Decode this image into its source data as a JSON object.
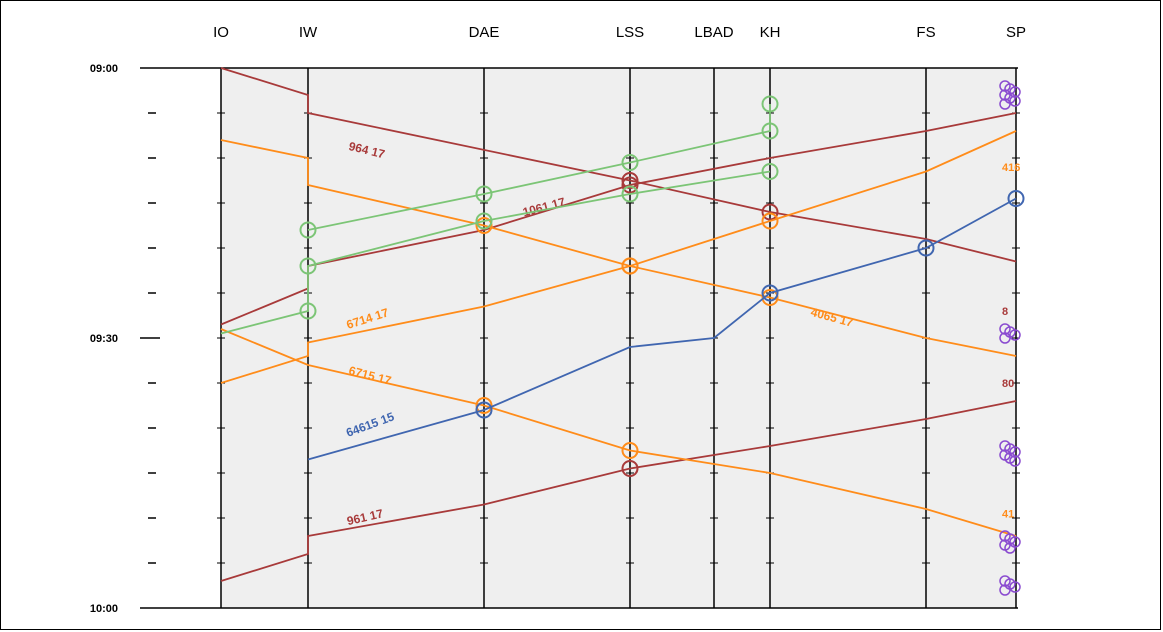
{
  "colors": {
    "background_band": "#efefef",
    "red": "#a83a3a",
    "orange": "#ff8c1a",
    "green": "#7cc576",
    "blue": "#4066b0",
    "purple": "#8a4bd0",
    "axis": "#000000"
  },
  "chart_data": {
    "type": "line",
    "title": "",
    "xlabel": "",
    "ylabel": "",
    "x_type": "station",
    "y_type": "time",
    "ylim": [
      "09:00",
      "10:00"
    ],
    "y_tick_labels": [
      "09:00",
      "09:30",
      "10:00"
    ],
    "y_minor_tick_interval_min": 5,
    "grid": false,
    "stations": [
      {
        "code": "IO",
        "position_km": 0
      },
      {
        "code": "IW",
        "position_km": 1.7
      },
      {
        "code": "DAE",
        "position_km": 5.3
      },
      {
        "code": "LSS",
        "position_km": 8.2
      },
      {
        "code": "LBAD",
        "position_km": 9.8
      },
      {
        "code": "KH",
        "position_km": 10.9
      },
      {
        "code": "FS",
        "position_km": 14.0
      },
      {
        "code": "SP",
        "position_km": 15.8
      }
    ],
    "series": [
      {
        "name": "964 17",
        "color": "red",
        "label_station": "IW",
        "label_time": 9.08,
        "points": [
          [
            "IO",
            0.0
          ],
          [
            "IW",
            3.0
          ],
          [
            "IW",
            5.0
          ],
          [
            "LSS",
            12.5
          ],
          [
            "KH",
            16.0
          ],
          [
            "FS",
            19.0
          ],
          [
            "SP",
            21.5
          ]
        ],
        "markers": [
          "LSS",
          "KH"
        ]
      },
      {
        "name": "1061 17",
        "color": "red",
        "label_station": "DAE",
        "label_time": 16.5,
        "points": [
          [
            "IO",
            28.5
          ],
          [
            "IW",
            24.5
          ],
          [
            "IW",
            22.0
          ],
          [
            "DAE",
            18.0
          ],
          [
            "LSS",
            13.0
          ],
          [
            "KH",
            10.0
          ],
          [
            "FS",
            7.0
          ],
          [
            "SP",
            5.0
          ]
        ],
        "markers": [
          "LSS"
        ]
      },
      {
        "name": "961 17",
        "color": "red",
        "label_station": "IW",
        "label_time": 50.8,
        "points": [
          [
            "IO",
            57.0
          ],
          [
            "IW",
            54.0
          ],
          [
            "IW",
            52.0
          ],
          [
            "DAE",
            48.5
          ],
          [
            "LSS",
            44.5
          ],
          [
            "KH",
            42.0
          ],
          [
            "FS",
            39.0
          ],
          [
            "SP",
            37.0
          ]
        ],
        "markers": [
          "LSS"
        ]
      },
      {
        "name": "6714 17",
        "color": "orange",
        "label_station": "IW",
        "label_time": 29.0,
        "points": [
          [
            "IO",
            35.0
          ],
          [
            "IW",
            32.0
          ],
          [
            "IW",
            30.5
          ],
          [
            "DAE",
            26.5
          ],
          [
            "LSS",
            22.0
          ],
          [
            "KH",
            17.0
          ],
          [
            "FS",
            11.5
          ],
          [
            "SP",
            7.0
          ]
        ],
        "markers": [
          "LSS",
          "KH"
        ]
      },
      {
        "name": "6715 17",
        "color": "orange",
        "label_station": "IW",
        "label_time": 34.0,
        "points": [
          [
            "IO",
            29.0
          ],
          [
            "IW",
            33.0
          ],
          [
            "DAE",
            37.5
          ],
          [
            "LSS",
            42.5
          ],
          [
            "KH",
            45.0
          ],
          [
            "FS",
            49.0
          ],
          [
            "SP",
            52.0
          ]
        ],
        "markers": [
          "DAE",
          "LSS"
        ]
      },
      {
        "name": "4065 17",
        "color": "orange",
        "label_station": "KH",
        "label_time": 27.5,
        "points": [
          [
            "IO",
            8.0
          ],
          [
            "IW",
            10.0
          ],
          [
            "IW",
            13.0
          ],
          [
            "DAE",
            17.5
          ],
          [
            "LSS",
            22.0
          ],
          [
            "KH",
            25.5
          ],
          [
            "FS",
            30.0
          ],
          [
            "SP",
            32.0
          ]
        ],
        "markers": [
          "DAE",
          "LSS",
          "KH"
        ]
      },
      {
        "name": "64615 15",
        "color": "blue",
        "label_station": "IW",
        "label_time": 41.0,
        "points": [
          [
            "IW",
            43.5
          ],
          [
            "DAE",
            38.0
          ],
          [
            "LSS",
            31.0
          ],
          [
            "LBAD",
            30.0
          ],
          [
            "KH",
            25.0
          ],
          [
            "FS",
            20.0
          ],
          [
            "SP",
            14.5
          ]
        ],
        "markers": [
          "DAE",
          "KH",
          "FS",
          "SP"
        ]
      },
      {
        "name": "",
        "color": "green",
        "points": [
          [
            "IO",
            29.5
          ],
          [
            "IW",
            27.0
          ],
          [
            "IW",
            22.0
          ],
          [
            "DAE",
            17.0
          ],
          [
            "LSS",
            14.0
          ],
          [
            "KH",
            11.5
          ]
        ],
        "markers": [
          "IW",
          "DAE",
          "LSS",
          "KH"
        ]
      },
      {
        "name": "",
        "color": "green",
        "points": [
          [
            "IW",
            18.0
          ],
          [
            "DAE",
            14.0
          ],
          [
            "LSS",
            10.5
          ],
          [
            "KH",
            7.0
          ],
          [
            "KH",
            4.0
          ]
        ],
        "markers": [
          "IW",
          "DAE",
          "LSS",
          "KH"
        ]
      }
    ],
    "edge_labels": [
      {
        "text": "416",
        "color": "orange",
        "time": 11.0
      },
      {
        "text": "8",
        "color": "red",
        "time": 27.0
      },
      {
        "text": "80",
        "color": "red",
        "time": 35.0
      },
      {
        "text": "41",
        "color": "orange",
        "time": 49.5
      }
    ]
  }
}
